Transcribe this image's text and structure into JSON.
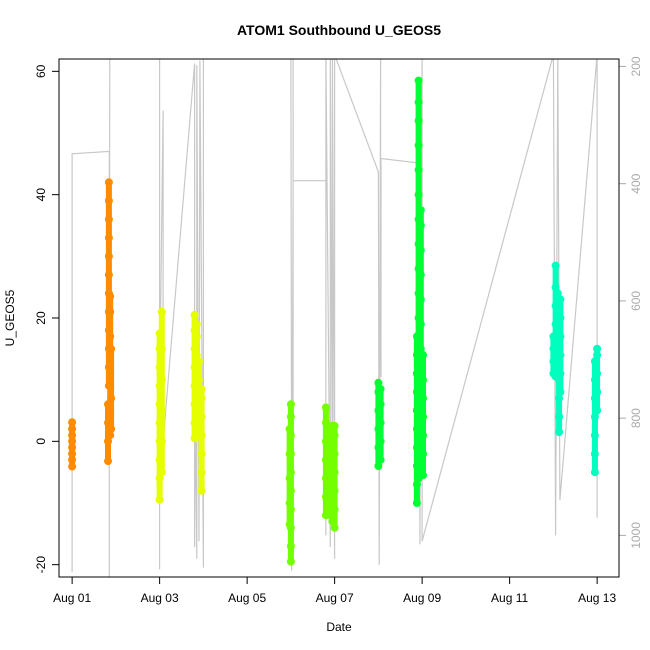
{
  "chart_data": {
    "type": "scatter",
    "title": "ATOM1 Southbound U_GEOS5",
    "xlabel": "Date",
    "ylabel": "U_GEOS5",
    "x_ticks": [
      "Aug 01",
      "Aug 03",
      "Aug 05",
      "Aug 07",
      "Aug 09",
      "Aug 11",
      "Aug 13"
    ],
    "x_tick_days": [
      1,
      3,
      5,
      7,
      9,
      11,
      13
    ],
    "xlim": [
      0.7,
      13.5
    ],
    "y_ticks": [
      -20,
      0,
      20,
      40,
      60
    ],
    "ylim": [
      -22,
      62
    ],
    "right_axis": {
      "ticks": [
        200,
        400,
        600,
        800,
        1000
      ],
      "color": "#aaaaaa",
      "lim_top": 187.3,
      "lim_bottom": 1071
    },
    "grey_line_color": "#c8c8c8",
    "grey_series": [
      [
        1.0,
        1063
      ],
      [
        1.0,
        1001
      ],
      [
        1.0,
        838
      ],
      [
        1.0,
        349
      ],
      [
        1.85,
        345
      ],
      [
        1.85,
        1071
      ],
      [
        1.85,
        1063
      ],
      [
        1.85,
        800
      ],
      [
        1.86,
        156
      ],
      [
        3.0,
        165
      ],
      [
        3.0,
        1058
      ],
      [
        3.0,
        1050
      ],
      [
        3.0,
        760
      ],
      [
        3.08,
        275
      ],
      [
        3.08,
        840
      ],
      [
        3.8,
        195
      ],
      [
        3.8,
        1020
      ],
      [
        3.82,
        770
      ],
      [
        3.85,
        1040
      ],
      [
        3.85,
        198
      ],
      [
        3.9,
        1010
      ],
      [
        3.92,
        190
      ],
      [
        4.0,
        1055
      ],
      [
        4.0,
        187
      ],
      [
        6.0,
        180
      ],
      [
        6.02,
        1060
      ],
      [
        6.05,
        420
      ],
      [
        6.05,
        1040
      ],
      [
        6.05,
        180
      ],
      [
        6.05,
        395
      ],
      [
        6.8,
        395
      ],
      [
        6.8,
        1000
      ],
      [
        6.8,
        180
      ],
      [
        6.9,
        1020
      ],
      [
        6.9,
        180
      ],
      [
        6.95,
        920
      ],
      [
        6.95,
        180
      ],
      [
        7.0,
        1040
      ],
      [
        7.0,
        180
      ],
      [
        8.0,
        380
      ],
      [
        8.02,
        1050
      ],
      [
        8.05,
        180
      ],
      [
        8.05,
        480
      ],
      [
        8.06,
        730
      ],
      [
        8.06,
        357
      ],
      [
        8.95,
        365
      ],
      [
        8.95,
        1015
      ],
      [
        9.0,
        180
      ],
      [
        9.0,
        1010
      ],
      [
        12.0,
        180
      ],
      [
        12.05,
        1000
      ],
      [
        12.1,
        180
      ],
      [
        12.15,
        940
      ],
      [
        13.0,
        180
      ],
      [
        13.0,
        970
      ],
      [
        13.0,
        180
      ]
    ],
    "series": [
      {
        "color": "#ff8c00",
        "points": [
          [
            1.0,
            -4.1
          ],
          [
            1.0,
            -3.0
          ],
          [
            1.0,
            -2.0
          ],
          [
            1.0,
            -1.0
          ],
          [
            1.0,
            0.0
          ],
          [
            1.0,
            1.0
          ],
          [
            1.0,
            2.0
          ],
          [
            1.0,
            3.1
          ],
          [
            1.82,
            -3.2
          ],
          [
            1.82,
            0
          ],
          [
            1.82,
            3
          ],
          [
            1.82,
            6
          ],
          [
            1.84,
            9
          ],
          [
            1.84,
            12
          ],
          [
            1.84,
            15
          ],
          [
            1.84,
            18
          ],
          [
            1.84,
            21
          ],
          [
            1.84,
            24
          ],
          [
            1.84,
            27
          ],
          [
            1.84,
            30
          ],
          [
            1.84,
            33
          ],
          [
            1.84,
            36
          ],
          [
            1.84,
            39
          ],
          [
            1.84,
            42
          ],
          [
            1.87,
            1
          ],
          [
            1.87,
            5
          ],
          [
            1.87,
            9
          ],
          [
            1.87,
            13
          ],
          [
            1.87,
            17
          ],
          [
            1.87,
            21
          ],
          [
            1.87,
            23.5
          ],
          [
            1.87,
            11
          ],
          [
            1.89,
            2
          ],
          [
            1.89,
            7
          ],
          [
            1.89,
            15
          ]
        ]
      },
      {
        "color": "#e6ff00",
        "points": [
          [
            3.0,
            -9.5
          ],
          [
            3.0,
            -6
          ],
          [
            3.0,
            -3
          ],
          [
            3.0,
            0
          ],
          [
            3.0,
            3
          ],
          [
            3.0,
            6
          ],
          [
            3.0,
            9
          ],
          [
            3.0,
            12
          ],
          [
            3.0,
            15
          ],
          [
            3.0,
            17.5
          ],
          [
            3.05,
            -5
          ],
          [
            3.05,
            0
          ],
          [
            3.05,
            5
          ],
          [
            3.05,
            10
          ],
          [
            3.05,
            15
          ],
          [
            3.05,
            21
          ],
          [
            3.8,
            0.5
          ],
          [
            3.8,
            3
          ],
          [
            3.8,
            6
          ],
          [
            3.8,
            9
          ],
          [
            3.8,
            12
          ],
          [
            3.8,
            15
          ],
          [
            3.8,
            18
          ],
          [
            3.8,
            20.5
          ],
          [
            3.85,
            2
          ],
          [
            3.85,
            5
          ],
          [
            3.85,
            8
          ],
          [
            3.85,
            11
          ],
          [
            3.85,
            14
          ],
          [
            3.85,
            17
          ],
          [
            3.85,
            19
          ],
          [
            3.9,
            1
          ],
          [
            3.9,
            4
          ],
          [
            3.9,
            7
          ],
          [
            3.9,
            10
          ],
          [
            3.9,
            13
          ],
          [
            3.96,
            -8
          ],
          [
            3.96,
            -5
          ],
          [
            3.96,
            -2
          ],
          [
            3.96,
            1
          ],
          [
            3.96,
            4
          ],
          [
            3.96,
            7
          ],
          [
            3.96,
            8.5
          ]
        ]
      },
      {
        "color": "#73ff00",
        "points": [
          [
            6.0,
            -19.5
          ],
          [
            6.0,
            -17
          ],
          [
            6.0,
            -14
          ],
          [
            6.0,
            -11
          ],
          [
            6.0,
            -8
          ],
          [
            6.0,
            -5
          ],
          [
            6.0,
            -2
          ],
          [
            6.0,
            1
          ],
          [
            6.0,
            4
          ],
          [
            6.0,
            6
          ],
          [
            5.97,
            -13.5
          ],
          [
            5.97,
            -10
          ],
          [
            5.97,
            -6
          ],
          [
            5.97,
            -2
          ],
          [
            5.97,
            2
          ],
          [
            6.8,
            -12
          ],
          [
            6.8,
            -9
          ],
          [
            6.8,
            -6
          ],
          [
            6.8,
            -3
          ],
          [
            6.8,
            0
          ],
          [
            6.8,
            3
          ],
          [
            6.8,
            5.5
          ],
          [
            6.85,
            -11
          ],
          [
            6.85,
            -8
          ],
          [
            6.85,
            -5
          ],
          [
            6.85,
            -2
          ],
          [
            6.9,
            -12
          ],
          [
            6.9,
            -9
          ],
          [
            6.9,
            -6
          ],
          [
            6.9,
            -3
          ],
          [
            6.9,
            0
          ],
          [
            6.9,
            2
          ],
          [
            6.95,
            -13
          ],
          [
            6.95,
            -10
          ],
          [
            6.95,
            -7
          ],
          [
            6.95,
            -4
          ],
          [
            6.95,
            -1
          ],
          [
            6.95,
            2.5
          ],
          [
            7.0,
            -14
          ],
          [
            7.0,
            -11
          ],
          [
            7.0,
            -8
          ],
          [
            7.0,
            -5
          ],
          [
            7.0,
            -2
          ],
          [
            7.0,
            1
          ],
          [
            7.0,
            2.5
          ]
        ]
      },
      {
        "color": "#00ff33",
        "points": [
          [
            8.0,
            -4
          ],
          [
            8.0,
            -1
          ],
          [
            8.0,
            2
          ],
          [
            8.0,
            5
          ],
          [
            8.0,
            8
          ],
          [
            8.0,
            9.5
          ],
          [
            8.05,
            -3
          ],
          [
            8.05,
            0
          ],
          [
            8.05,
            3
          ],
          [
            8.05,
            6
          ],
          [
            8.05,
            8.5
          ],
          [
            8.88,
            -10
          ],
          [
            8.88,
            -7
          ],
          [
            8.88,
            -4
          ],
          [
            8.88,
            -1
          ],
          [
            8.88,
            2
          ],
          [
            8.88,
            5
          ],
          [
            8.88,
            8
          ],
          [
            8.88,
            11
          ],
          [
            8.88,
            14
          ],
          [
            8.88,
            17
          ],
          [
            8.92,
            -6
          ],
          [
            8.92,
            -3
          ],
          [
            8.92,
            0
          ],
          [
            8.92,
            4
          ],
          [
            8.92,
            8
          ],
          [
            8.92,
            12
          ],
          [
            8.92,
            16
          ],
          [
            8.92,
            20
          ],
          [
            8.92,
            24
          ],
          [
            8.92,
            28
          ],
          [
            8.92,
            32
          ],
          [
            8.92,
            36
          ],
          [
            8.92,
            40
          ],
          [
            8.92,
            44
          ],
          [
            8.92,
            48
          ],
          [
            8.92,
            52
          ],
          [
            8.92,
            55
          ],
          [
            8.92,
            58.5
          ],
          [
            8.97,
            -5
          ],
          [
            8.97,
            -1
          ],
          [
            8.97,
            3
          ],
          [
            8.97,
            7
          ],
          [
            8.97,
            11
          ],
          [
            8.97,
            15
          ],
          [
            8.97,
            19
          ],
          [
            8.97,
            23
          ],
          [
            8.97,
            27
          ],
          [
            8.97,
            31
          ],
          [
            8.97,
            35
          ],
          [
            8.97,
            37.5
          ],
          [
            9.02,
            -5.5
          ],
          [
            9.02,
            -2
          ],
          [
            9.02,
            1
          ],
          [
            9.02,
            4
          ],
          [
            9.02,
            7
          ],
          [
            9.02,
            10
          ],
          [
            9.02,
            14
          ]
        ]
      },
      {
        "color": "#00ffbf",
        "points": [
          [
            12.0,
            11
          ],
          [
            12.0,
            13
          ],
          [
            12.0,
            15
          ],
          [
            12.0,
            17
          ],
          [
            12.05,
            10.5
          ],
          [
            12.05,
            13
          ],
          [
            12.05,
            16
          ],
          [
            12.05,
            19
          ],
          [
            12.05,
            22
          ],
          [
            12.05,
            25
          ],
          [
            12.05,
            28.5
          ],
          [
            12.1,
            12
          ],
          [
            12.1,
            15
          ],
          [
            12.1,
            18
          ],
          [
            12.1,
            21
          ],
          [
            12.1,
            24
          ],
          [
            12.13,
            1.5
          ],
          [
            12.13,
            4
          ],
          [
            12.13,
            7
          ],
          [
            12.13,
            10
          ],
          [
            12.13,
            13
          ],
          [
            12.13,
            16
          ],
          [
            12.13,
            18
          ],
          [
            12.16,
            8
          ],
          [
            12.16,
            11
          ],
          [
            12.16,
            14
          ],
          [
            12.16,
            17
          ],
          [
            12.16,
            20
          ],
          [
            12.16,
            23
          ],
          [
            12.95,
            -5
          ],
          [
            12.95,
            -2
          ],
          [
            12.95,
            1
          ],
          [
            12.95,
            4
          ],
          [
            12.95,
            7
          ],
          [
            12.95,
            10
          ],
          [
            12.95,
            13
          ],
          [
            13.0,
            5
          ],
          [
            13.0,
            8
          ],
          [
            13.0,
            11
          ],
          [
            13.0,
            14
          ],
          [
            13.0,
            15
          ]
        ]
      }
    ]
  }
}
